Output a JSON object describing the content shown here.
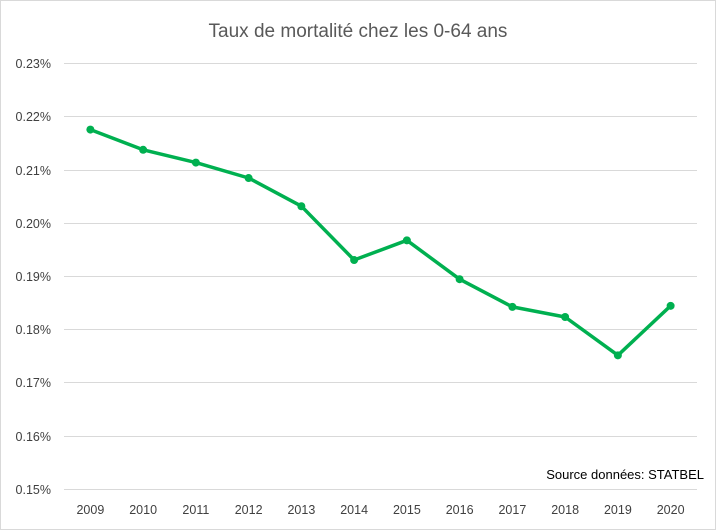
{
  "chart_data": {
    "type": "line",
    "title": "Taux de mortalité chez les 0-64 ans",
    "xlabel": "",
    "ylabel": "",
    "categories": [
      "2009",
      "2010",
      "2011",
      "2012",
      "2013",
      "2014",
      "2015",
      "2016",
      "2017",
      "2018",
      "2019",
      "2020"
    ],
    "series": [
      {
        "values": [
          0.2175,
          0.2137,
          0.2113,
          0.2084,
          0.2031,
          0.193,
          0.1967,
          0.1894,
          0.1842,
          0.1823,
          0.1751,
          0.1844
        ]
      }
    ],
    "ylim": [
      0.15,
      0.23
    ],
    "yticks": [
      0.15,
      0.16,
      0.17,
      0.18,
      0.19,
      0.2,
      0.21,
      0.22,
      0.23
    ],
    "ytick_labels": [
      "0.15%",
      "0.16%",
      "0.17%",
      "0.18%",
      "0.19%",
      "0.20%",
      "0.21%",
      "0.22%",
      "0.23%"
    ],
    "grid": true,
    "legend": "none",
    "annotation": "Source données: STATBEL",
    "colors": {
      "line": "#00b050",
      "grid": "#d9d9d9",
      "text": "#404040",
      "title": "#595959"
    }
  }
}
